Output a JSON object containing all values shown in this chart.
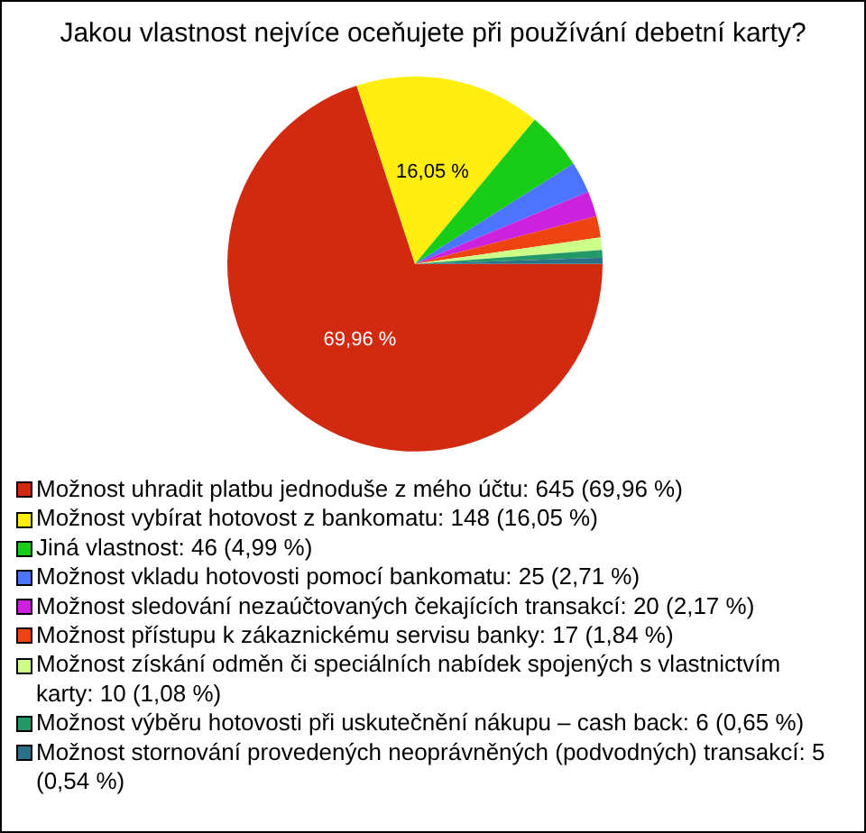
{
  "chart_data": {
    "type": "pie",
    "title": "Jakou vlastnost nejvíce oceňujete při používání debetní karty?",
    "categories": [
      "Možnost uhradit platbu jednoduše z mého účtu: 645 (69,96 %)",
      "Možnost vybírat hotovost z bankomatu: 148 (16,05 %)",
      "Jiná vlastnost: 46 (4,99 %)",
      "Možnost vkladu hotovosti pomocí bankomatu: 25 (2,71 %)",
      "Možnost sledování nezaúčtovaných čekajících transakcí: 20 (2,17 %)",
      "Možnost přístupu k zákaznickému servisu banky: 17 (1,84 %)",
      "Možnost získání odměn či speciálních nabídek spojených s vlastnictvím karty: 10 (1,08 %)",
      "Možnost výběru hotovosti při uskutečnění nákupu – cash back: 6 (0,65 %)",
      "Možnost stornování provedených neoprávněných (podvodných) transakcí: 5 (0,54 %)"
    ],
    "values": [
      69.96,
      16.05,
      4.99,
      2.71,
      2.17,
      1.84,
      1.08,
      0.65,
      0.54
    ],
    "value_labels": [
      "69,96 %",
      "16,05 %",
      null,
      null,
      null,
      null,
      null,
      null,
      null
    ],
    "colors": [
      "#d22a10",
      "#ffee10",
      "#18cc18",
      "#4d74ff",
      "#cc22dd",
      "#ee4411",
      "#ccff88",
      "#229966",
      "#2a7088"
    ],
    "legend": "bottom"
  }
}
